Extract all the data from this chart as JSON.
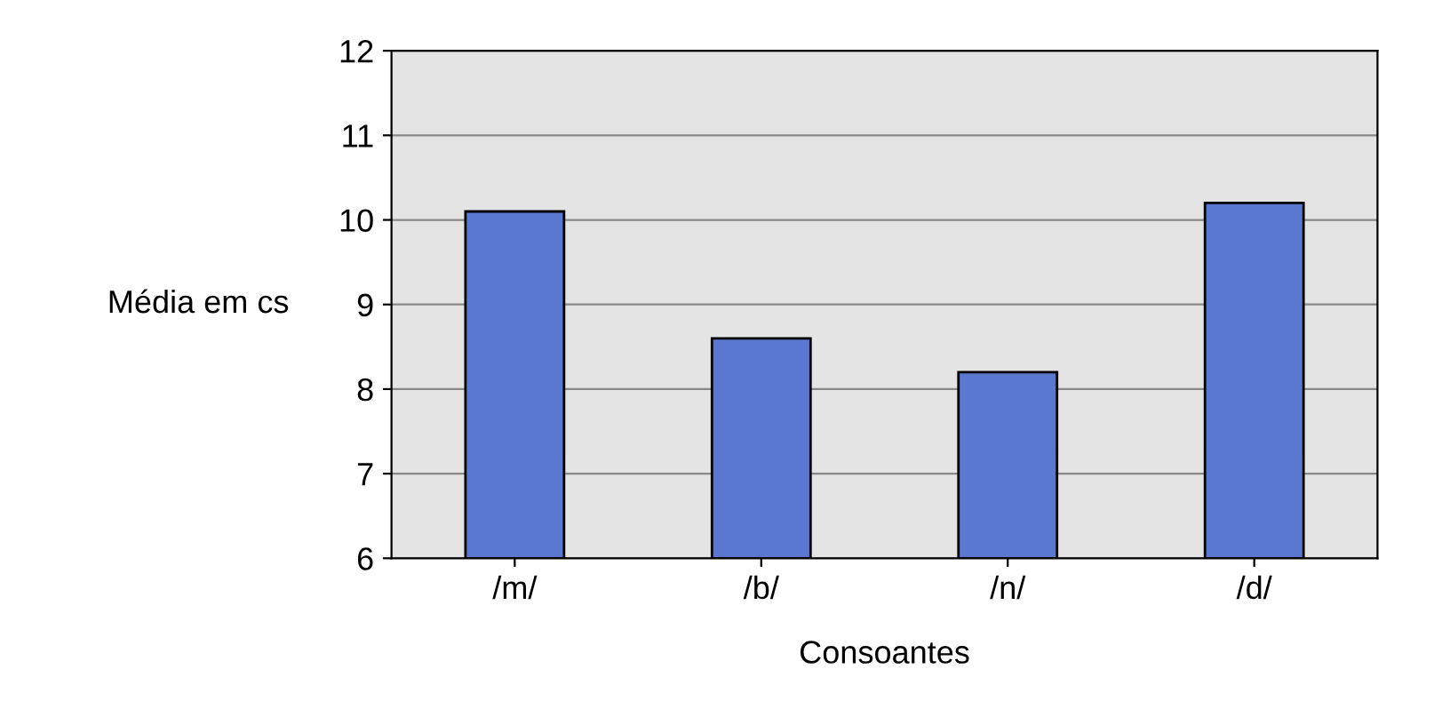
{
  "chart_data": {
    "type": "bar",
    "xlabel": "Consoantes",
    "ylabel": "Média em cs",
    "categories": [
      "/m/",
      "/b/",
      "/n/",
      "/d/"
    ],
    "values": [
      10.1,
      8.6,
      8.2,
      10.2
    ],
    "color": "#5b78d0",
    "ylim": [
      6,
      12
    ],
    "yticks": [
      6,
      7,
      8,
      9,
      10,
      11,
      12
    ],
    "grid": "y"
  }
}
